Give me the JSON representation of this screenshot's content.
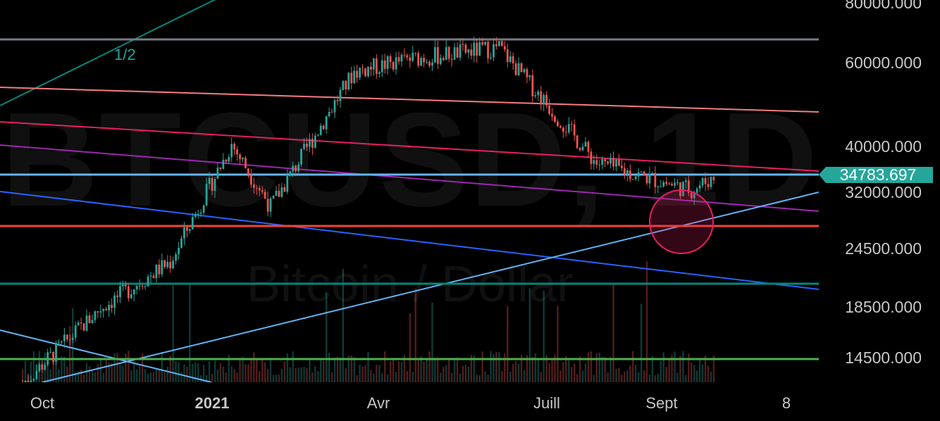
{
  "watermark": {
    "symbol": "BTCUSD, 1D",
    "name": "Bitcoin / Dollar"
  },
  "price_label": {
    "value": "34783.697",
    "color": "#26a69a"
  },
  "colors": {
    "up": "#26a69a",
    "down": "#ef5350",
    "highlight_zone": "#e91e63"
  },
  "chart_data": {
    "type": "candlestick",
    "title": "",
    "xlabel": "",
    "ylabel": "",
    "y_scale": "log",
    "ylim": [
      11500,
      82000
    ],
    "x_tick_labels": [
      "Oct",
      "2021",
      "Avr",
      "Juill",
      "Sept",
      "8"
    ],
    "y_tick_labels": [
      "80000.000",
      "60000.000",
      "40000.000",
      "32000.000",
      "24500.000",
      "18500.000",
      "14500.000"
    ],
    "y_ticks": [
      80000,
      60000,
      40000,
      32000,
      24500,
      18500,
      14500
    ],
    "last_price": 34783.697,
    "ohlc_samples": [
      {
        "date": "2020-11-22",
        "close": 18400
      },
      {
        "date": "2020-12-17",
        "close": 23000
      },
      {
        "date": "2021-01-08",
        "close": 40500
      },
      {
        "date": "2021-01-22",
        "close": 30000
      },
      {
        "date": "2021-02-21",
        "close": 57500
      },
      {
        "date": "2021-03-13",
        "close": 61000
      },
      {
        "date": "2021-04-14",
        "close": 64500
      },
      {
        "date": "2021-05-19",
        "close": 37000
      },
      {
        "date": "2021-06-22",
        "close": 32500
      },
      {
        "date": "2021-07-01",
        "close": 34783.697
      }
    ],
    "horizontal_levels": [
      {
        "price": 64800,
        "color": "#787b86"
      },
      {
        "price": 34783.697,
        "color": "#64b5f6"
      },
      {
        "price": 28000,
        "color": "#f44336"
      },
      {
        "price": 20600,
        "color": "#00897b"
      },
      {
        "price": 14500,
        "color": "#4caf50"
      }
    ],
    "trendlines": [
      {
        "color": "#f77c80"
      },
      {
        "color": "#e91e63"
      },
      {
        "color": "#9c27b0"
      },
      {
        "color": "#2962ff"
      },
      {
        "color": "#64b5f6"
      },
      {
        "color": "#00897b"
      }
    ],
    "annotations": [
      {
        "text": "1/2",
        "color": "#26a69a"
      }
    ],
    "grid": false,
    "legend": "none"
  }
}
